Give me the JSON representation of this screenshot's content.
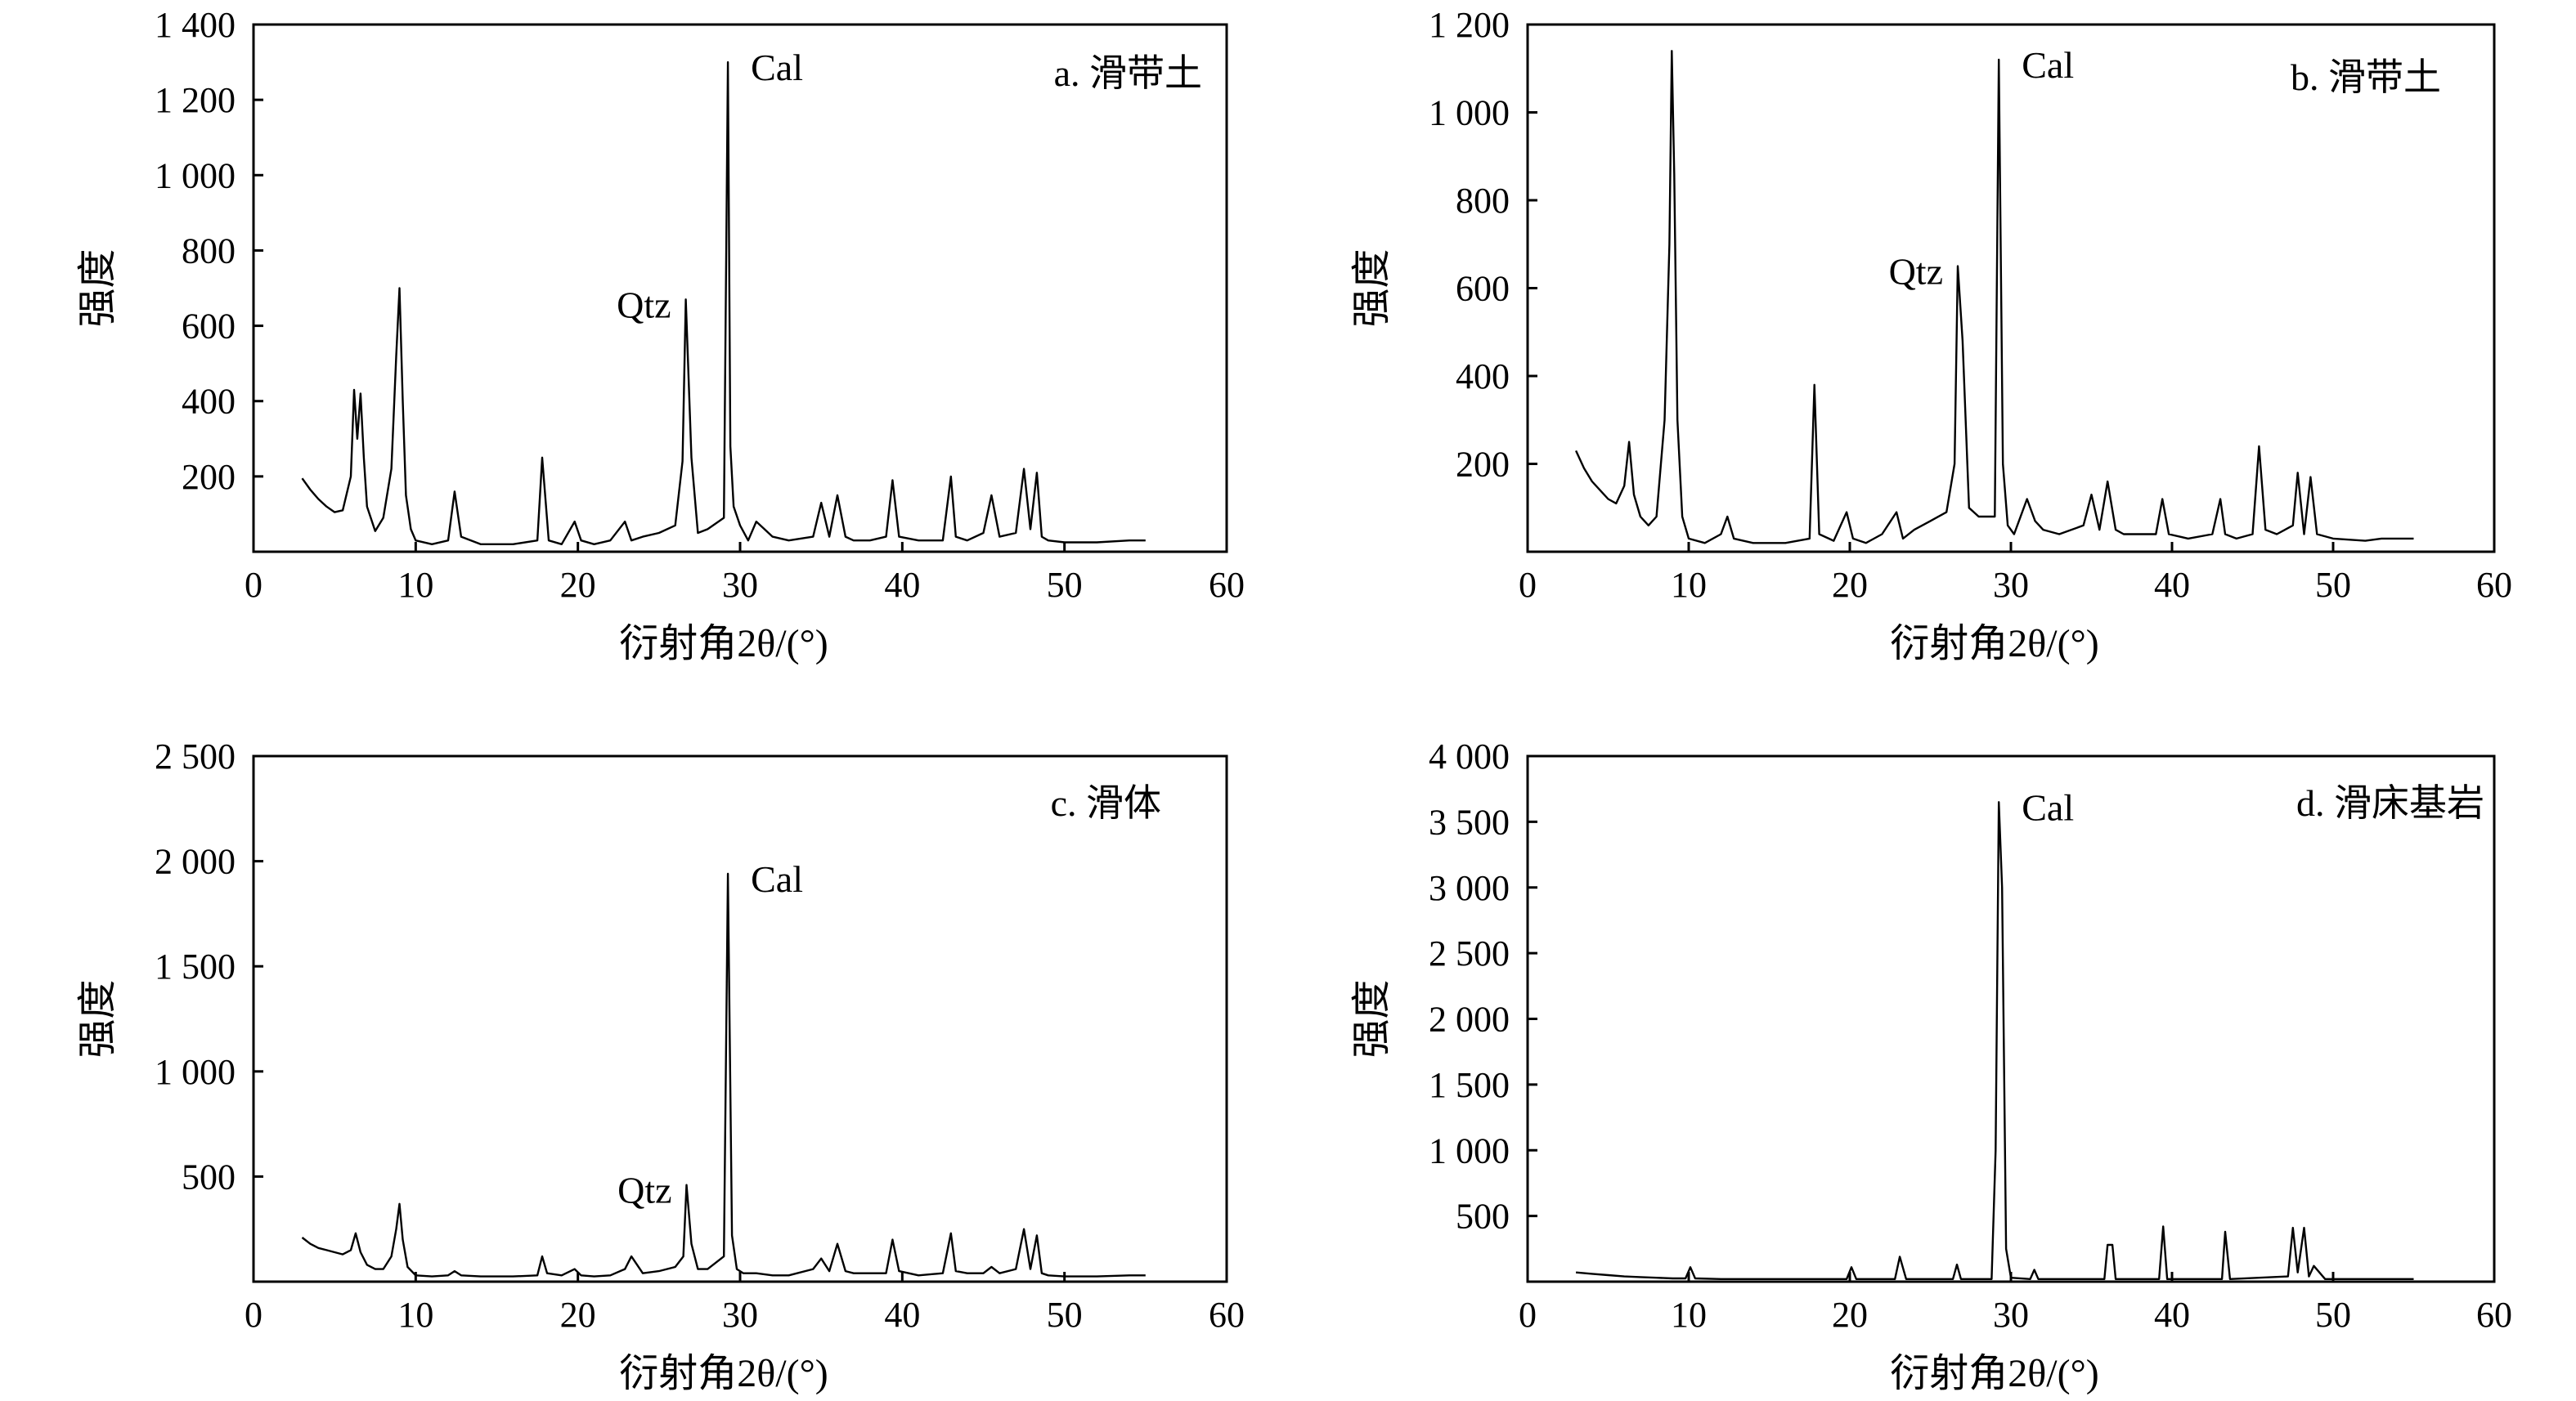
{
  "chart_data": [
    {
      "type": "line",
      "panel_label": "a. 滑带土",
      "xlabel": "衍射角2θ/(°)",
      "ylabel": "强度",
      "xlim": [
        0,
        60
      ],
      "ylim": [
        0,
        1400
      ],
      "x_ticks": [
        0,
        10,
        20,
        30,
        40,
        50,
        60
      ],
      "x_tick_labels": [
        "0",
        "10",
        "20",
        "30",
        "40",
        "50",
        "60"
      ],
      "y_ticks": [
        200,
        400,
        600,
        800,
        1000,
        1200,
        1400
      ],
      "y_tick_labels": [
        "200",
        "400",
        "600",
        "800",
        "1 000",
        "1 200",
        "1 400"
      ],
      "grid": false,
      "series": [
        {
          "x": [
            3.0,
            3.5,
            4.0,
            4.5,
            5.0,
            5.5,
            6.0,
            6.2,
            6.4,
            6.6,
            6.8,
            7.0,
            7.5,
            8.0,
            8.5,
            8.8,
            9.0,
            9.2,
            9.4,
            9.7,
            10.0,
            11.0,
            12.0,
            12.4,
            12.8,
            14.0,
            16.0,
            17.5,
            17.8,
            18.2,
            19.0,
            19.8,
            20.2,
            21.0,
            22.0,
            22.9,
            23.3,
            24.0,
            25.0,
            26.0,
            26.45,
            26.65,
            27.0,
            27.4,
            28.0,
            29.0,
            29.25,
            29.4,
            29.6,
            30.0,
            30.5,
            31.0,
            31.5,
            32.0,
            33.0,
            34.5,
            35.0,
            35.5,
            36.0,
            36.5,
            37.0,
            38.0,
            39.0,
            39.4,
            39.8,
            41.0,
            42.5,
            43.0,
            43.3,
            44.0,
            45.0,
            45.5,
            46.0,
            47.0,
            47.5,
            47.9,
            48.3,
            48.6,
            49.0,
            50.0,
            52.0,
            54.0,
            55.0
          ],
          "y": [
            195,
            165,
            140,
            120,
            105,
            110,
            200,
            430,
            300,
            420,
            250,
            120,
            55,
            90,
            220,
            520,
            700,
            400,
            150,
            60,
            30,
            20,
            30,
            160,
            40,
            20,
            20,
            30,
            250,
            30,
            20,
            80,
            30,
            20,
            30,
            80,
            30,
            40,
            50,
            70,
            240,
            670,
            250,
            50,
            60,
            90,
            1300,
            280,
            120,
            70,
            30,
            80,
            60,
            40,
            30,
            40,
            130,
            40,
            150,
            40,
            30,
            30,
            40,
            190,
            40,
            30,
            30,
            200,
            40,
            30,
            50,
            150,
            40,
            50,
            220,
            60,
            210,
            40,
            30,
            25,
            25,
            30,
            30
          ]
        }
      ],
      "annotations": [
        {
          "text": "Qtz",
          "x": 26.65,
          "y": 670
        },
        {
          "text": "Cal",
          "x": 29.25,
          "y": 1300
        }
      ]
    },
    {
      "type": "line",
      "panel_label": "b. 滑带土",
      "xlabel": "衍射角2θ/(°)",
      "ylabel": "强度",
      "xlim": [
        0,
        60
      ],
      "ylim": [
        0,
        1200
      ],
      "x_ticks": [
        0,
        10,
        20,
        30,
        40,
        50,
        60
      ],
      "x_tick_labels": [
        "0",
        "10",
        "20",
        "30",
        "40",
        "50",
        "60"
      ],
      "y_ticks": [
        200,
        400,
        600,
        800,
        1000,
        1200
      ],
      "y_tick_labels": [
        "200",
        "400",
        "600",
        "800",
        "1 000",
        "1 200"
      ],
      "grid": false,
      "series": [
        {
          "x": [
            3.0,
            3.5,
            4.0,
            4.5,
            5.0,
            5.5,
            6.0,
            6.3,
            6.6,
            7.0,
            7.5,
            8.0,
            8.5,
            8.8,
            8.95,
            9.1,
            9.3,
            9.6,
            10.0,
            11.0,
            12.0,
            12.4,
            12.8,
            14.0,
            16.0,
            17.5,
            17.8,
            18.1,
            19.0,
            19.8,
            20.2,
            21.0,
            22.0,
            22.9,
            23.3,
            24.0,
            25.0,
            26.0,
            26.5,
            26.7,
            27.0,
            27.4,
            28.0,
            29.0,
            29.25,
            29.5,
            29.8,
            30.2,
            31.0,
            31.5,
            32.0,
            33.0,
            34.5,
            35.0,
            35.5,
            36.0,
            36.5,
            37.0,
            38.0,
            39.0,
            39.4,
            39.8,
            41.0,
            42.5,
            43.0,
            43.3,
            44.0,
            45.0,
            45.4,
            45.8,
            46.5,
            47.5,
            47.8,
            48.2,
            48.6,
            49.0,
            50.0,
            52.0,
            53.0,
            55.0
          ],
          "y": [
            230,
            190,
            160,
            140,
            120,
            110,
            150,
            250,
            130,
            80,
            60,
            80,
            300,
            700,
            1140,
            860,
            300,
            80,
            30,
            20,
            40,
            80,
            30,
            20,
            20,
            30,
            380,
            40,
            25,
            90,
            30,
            20,
            40,
            90,
            30,
            50,
            70,
            90,
            200,
            650,
            480,
            100,
            80,
            80,
            1120,
            200,
            60,
            40,
            120,
            70,
            50,
            40,
            60,
            130,
            50,
            160,
            50,
            40,
            40,
            40,
            120,
            40,
            30,
            40,
            120,
            40,
            30,
            40,
            240,
            50,
            40,
            60,
            180,
            40,
            170,
            40,
            30,
            25,
            30,
            30
          ]
        }
      ],
      "annotations": [
        {
          "text": "Qtz",
          "x": 26.7,
          "y": 650
        },
        {
          "text": "Cal",
          "x": 29.25,
          "y": 1120
        }
      ]
    },
    {
      "type": "line",
      "panel_label": "c. 滑体",
      "xlabel": "衍射角2θ/(°)",
      "ylabel": "强度",
      "xlim": [
        0,
        60
      ],
      "ylim": [
        0,
        2500
      ],
      "x_ticks": [
        0,
        10,
        20,
        30,
        40,
        50,
        60
      ],
      "x_tick_labels": [
        "0",
        "10",
        "20",
        "30",
        "40",
        "50",
        "60"
      ],
      "y_ticks": [
        500,
        1000,
        1500,
        2000,
        2500
      ],
      "y_tick_labels": [
        "500",
        "1 000",
        "1 500",
        "2 000",
        "2 500"
      ],
      "grid": false,
      "series": [
        {
          "x": [
            3.0,
            3.5,
            4.0,
            4.5,
            5.0,
            5.5,
            6.0,
            6.3,
            6.6,
            7.0,
            7.5,
            8.0,
            8.5,
            8.8,
            9.0,
            9.2,
            9.5,
            10.0,
            11.0,
            12.0,
            12.4,
            12.8,
            14.0,
            16.0,
            17.5,
            17.8,
            18.1,
            19.0,
            19.8,
            20.2,
            21.0,
            22.0,
            22.9,
            23.3,
            24.0,
            25.0,
            26.0,
            26.5,
            26.7,
            27.0,
            27.4,
            28.0,
            29.0,
            29.25,
            29.5,
            29.8,
            30.2,
            31.0,
            32.0,
            33.0,
            34.5,
            35.0,
            35.5,
            36.0,
            36.5,
            37.0,
            38.0,
            39.0,
            39.4,
            39.8,
            41.0,
            42.5,
            43.0,
            43.3,
            44.0,
            45.0,
            45.5,
            46.0,
            47.0,
            47.5,
            47.9,
            48.3,
            48.6,
            49.0,
            50.0,
            52.0,
            54.0,
            55.0
          ],
          "y": [
            210,
            180,
            160,
            150,
            140,
            130,
            150,
            230,
            140,
            80,
            60,
            60,
            120,
            250,
            370,
            200,
            70,
            30,
            25,
            30,
            50,
            30,
            25,
            25,
            30,
            120,
            40,
            30,
            60,
            30,
            25,
            30,
            60,
            120,
            40,
            50,
            70,
            120,
            460,
            180,
            60,
            60,
            120,
            1940,
            220,
            60,
            40,
            40,
            30,
            30,
            60,
            110,
            50,
            180,
            50,
            40,
            40,
            40,
            200,
            50,
            30,
            40,
            230,
            50,
            40,
            40,
            70,
            40,
            60,
            250,
            60,
            220,
            40,
            30,
            25,
            25,
            30,
            30
          ]
        }
      ],
      "annotations": [
        {
          "text": "Qtz",
          "x": 26.7,
          "y": 460
        },
        {
          "text": "Cal",
          "x": 29.25,
          "y": 1940
        }
      ]
    },
    {
      "type": "line",
      "panel_label": "d. 滑床基岩",
      "xlabel": "衍射角2θ/(°)",
      "ylabel": "强度",
      "xlim": [
        0,
        60
      ],
      "ylim": [
        0,
        4000
      ],
      "x_ticks": [
        0,
        10,
        20,
        30,
        40,
        50,
        60
      ],
      "x_tick_labels": [
        "0",
        "10",
        "20",
        "30",
        "40",
        "50",
        "60"
      ],
      "y_ticks": [
        500,
        1000,
        1500,
        2000,
        2500,
        3000,
        3500,
        4000
      ],
      "y_tick_labels": [
        "500",
        "1 000",
        "1 500",
        "2 000",
        "2 500",
        "3 000",
        "3 500",
        "4 000"
      ],
      "grid": false,
      "series": [
        {
          "x": [
            3.0,
            4.0,
            5.0,
            6.0,
            7.0,
            8.0,
            9.0,
            9.8,
            10.1,
            10.4,
            12.0,
            15.0,
            19.8,
            20.1,
            20.4,
            22.8,
            23.1,
            23.5,
            26.4,
            26.65,
            26.9,
            28.8,
            29.05,
            29.25,
            29.45,
            29.7,
            30.0,
            31.2,
            31.45,
            31.7,
            35.8,
            36.0,
            36.3,
            36.5,
            39.2,
            39.45,
            39.7,
            43.1,
            43.3,
            43.6,
            47.2,
            47.5,
            47.8,
            48.2,
            48.5,
            48.8,
            49.5,
            52.0,
            55.0
          ],
          "y": [
            70,
            60,
            50,
            40,
            35,
            30,
            25,
            25,
            110,
            25,
            20,
            20,
            20,
            110,
            20,
            20,
            190,
            20,
            20,
            130,
            20,
            20,
            1000,
            3650,
            3000,
            250,
            30,
            20,
            90,
            20,
            20,
            280,
            280,
            20,
            20,
            420,
            20,
            20,
            380,
            20,
            40,
            410,
            70,
            410,
            40,
            120,
            20,
            20,
            20
          ]
        }
      ],
      "annotations": [
        {
          "text": "Cal",
          "x": 29.25,
          "y": 3650
        }
      ]
    }
  ]
}
